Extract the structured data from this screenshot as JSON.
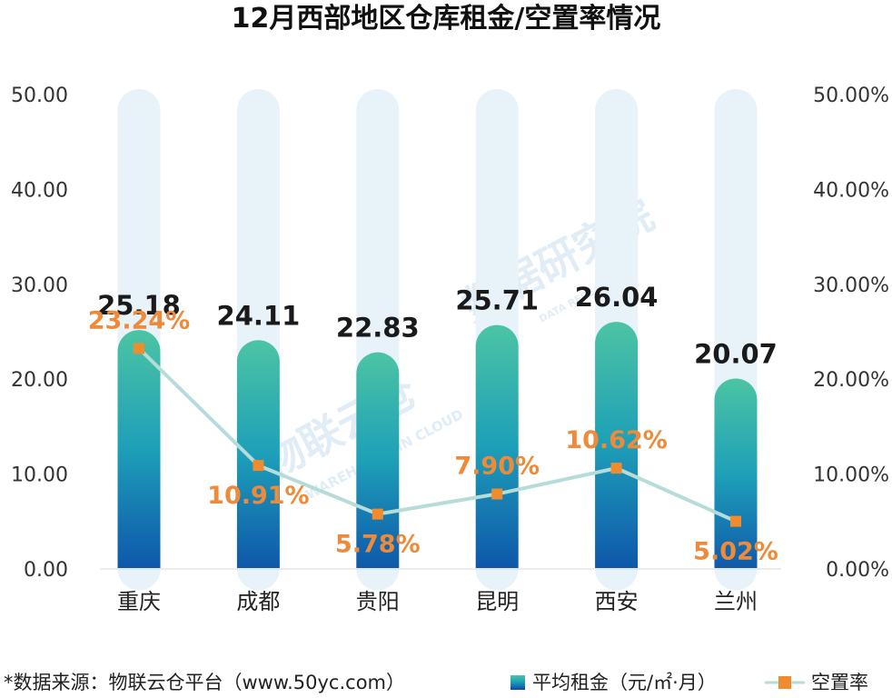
{
  "chart_data": {
    "type": "bar",
    "title": "12月西部地区仓库租金/空置率情况",
    "categories": [
      "重庆",
      "成都",
      "贵阳",
      "昆明",
      "西安",
      "兰州"
    ],
    "series": [
      {
        "name": "平均租金（元/㎡·月）",
        "type": "bar",
        "axis": "left",
        "values": [
          25.18,
          24.11,
          22.83,
          25.71,
          26.04,
          20.07
        ],
        "labels": [
          "25.18",
          "24.11",
          "22.83",
          "25.71",
          "26.04",
          "20.07"
        ]
      },
      {
        "name": "空置率",
        "type": "line",
        "axis": "right",
        "values": [
          23.24,
          10.91,
          5.78,
          7.9,
          10.62,
          5.02
        ],
        "labels": [
          "23.24%",
          "10.91%",
          "5.78%",
          "7.90%",
          "10.62%",
          "5.02%"
        ]
      }
    ],
    "ylim_left": [
      0,
      50
    ],
    "ylim_right": [
      0,
      50
    ],
    "yticks_left": [
      "0.00",
      "10.00",
      "20.00",
      "30.00",
      "40.00",
      "50.00"
    ],
    "yticks_right": [
      "0.00%",
      "10.00%",
      "20.00%",
      "30.00%",
      "40.00%",
      "50.00%"
    ],
    "legend_position": "bottom-right",
    "colors": {
      "bar_top": "#4cc4a4",
      "bar_bottom": "#0b4aa8",
      "bar_background": "#e8f2f9",
      "line": "#b5dcd9",
      "marker": "#f08c2e",
      "rate_label": "#ee8a3a"
    }
  },
  "source_note": "*数据来源：物联云仓平台（www.50yc.com）",
  "watermarks": [
    "数据研究院",
    "DATA RESEARCH",
    "物联云仓",
    "WAREHOUSE IN CLOUD"
  ]
}
